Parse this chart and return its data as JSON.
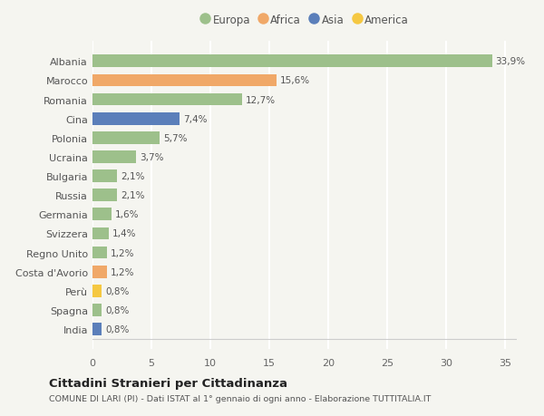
{
  "countries": [
    "Albania",
    "Marocco",
    "Romania",
    "Cina",
    "Polonia",
    "Ucraina",
    "Bulgaria",
    "Russia",
    "Germania",
    "Svizzera",
    "Regno Unito",
    "Costa d'Avorio",
    "Perù",
    "Spagna",
    "India"
  ],
  "values": [
    33.9,
    15.6,
    12.7,
    7.4,
    5.7,
    3.7,
    2.1,
    2.1,
    1.6,
    1.4,
    1.2,
    1.2,
    0.8,
    0.8,
    0.8
  ],
  "labels": [
    "33,9%",
    "15,6%",
    "12,7%",
    "7,4%",
    "5,7%",
    "3,7%",
    "2,1%",
    "2,1%",
    "1,6%",
    "1,4%",
    "1,2%",
    "1,2%",
    "0,8%",
    "0,8%",
    "0,8%"
  ],
  "categories": [
    "Europa",
    "Africa",
    "Europa",
    "Asia",
    "Europa",
    "Europa",
    "Europa",
    "Europa",
    "Europa",
    "Europa",
    "Europa",
    "Africa",
    "America",
    "Europa",
    "Asia"
  ],
  "colors": {
    "Europa": "#9dc08b",
    "Africa": "#f0a868",
    "Asia": "#5b7fba",
    "America": "#f5c842"
  },
  "legend_order": [
    "Europa",
    "Africa",
    "Asia",
    "America"
  ],
  "title": "Cittadini Stranieri per Cittadinanza",
  "subtitle": "COMUNE DI LARI (PI) - Dati ISTAT al 1° gennaio di ogni anno - Elaborazione TUTTITALIA.IT",
  "xlim": [
    0,
    36
  ],
  "xticks": [
    0,
    5,
    10,
    15,
    20,
    25,
    30,
    35
  ],
  "background_color": "#f5f5f0",
  "grid_color": "#ffffff",
  "bar_height": 0.65
}
